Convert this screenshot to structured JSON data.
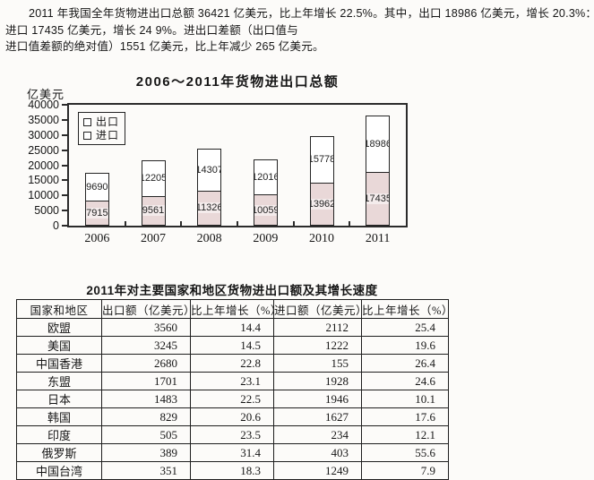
{
  "intro": {
    "line1": "2011 年我国全年货物进出口总额 36421 亿美元，比上年增长 22.5%。其中，出口 18986 亿美元，增长 20.3%：",
    "line2": "进口 17435 亿美元，增长 24 9%。进出口差额（出口值与",
    "line3": "进口值差额的绝对值）1551 亿美元，比上年减少 265 亿美元。"
  },
  "chart_data": [
    {
      "type": "bar",
      "stacked": true,
      "title": "2006～2011年货物进出口总额",
      "y_unit": "亿美元",
      "categories": [
        "2006",
        "2007",
        "2008",
        "2009",
        "2010",
        "2011"
      ],
      "series": [
        {
          "name": "出口",
          "values": [
            9690,
            12205,
            14307,
            12016,
            15778,
            18986
          ],
          "fill": "#ffffff"
        },
        {
          "name": "进口",
          "values": [
            7915,
            9561,
            11326,
            10059,
            13962,
            17435
          ],
          "fill": "#e9d8d8"
        }
      ],
      "ylim": [
        0,
        40000
      ],
      "ytick_step": 5000,
      "grid": false,
      "legend_position": "top-left",
      "bar_border_color": "#242424"
    },
    {
      "type": "table",
      "title": "2011年对主要国家和地区货物进出口额及其增长速度",
      "columns": [
        "国家和地区",
        "出口额（亿美元）",
        "比上年增长（%）",
        "进口额（亿美元）",
        "比上年增长（%）"
      ],
      "rows": [
        [
          "欧盟",
          "3560",
          "14.4",
          "2112",
          "25.4"
        ],
        [
          "美国",
          "3245",
          "14.5",
          "1222",
          "19.6"
        ],
        [
          "中国香港",
          "2680",
          "22.8",
          "155",
          "26.4"
        ],
        [
          "东盟",
          "1701",
          "23.1",
          "1928",
          "24.6"
        ],
        [
          "日本",
          "1483",
          "22.5",
          "1946",
          "10.1"
        ],
        [
          "韩国",
          "829",
          "20.6",
          "1627",
          "17.6"
        ],
        [
          "印度",
          "505",
          "23.5",
          "234",
          "12.1"
        ],
        [
          "俄罗斯",
          "389",
          "31.4",
          "403",
          "55.6"
        ],
        [
          "中国台湾",
          "351",
          "18.3",
          "1249",
          "7.9"
        ]
      ]
    }
  ]
}
